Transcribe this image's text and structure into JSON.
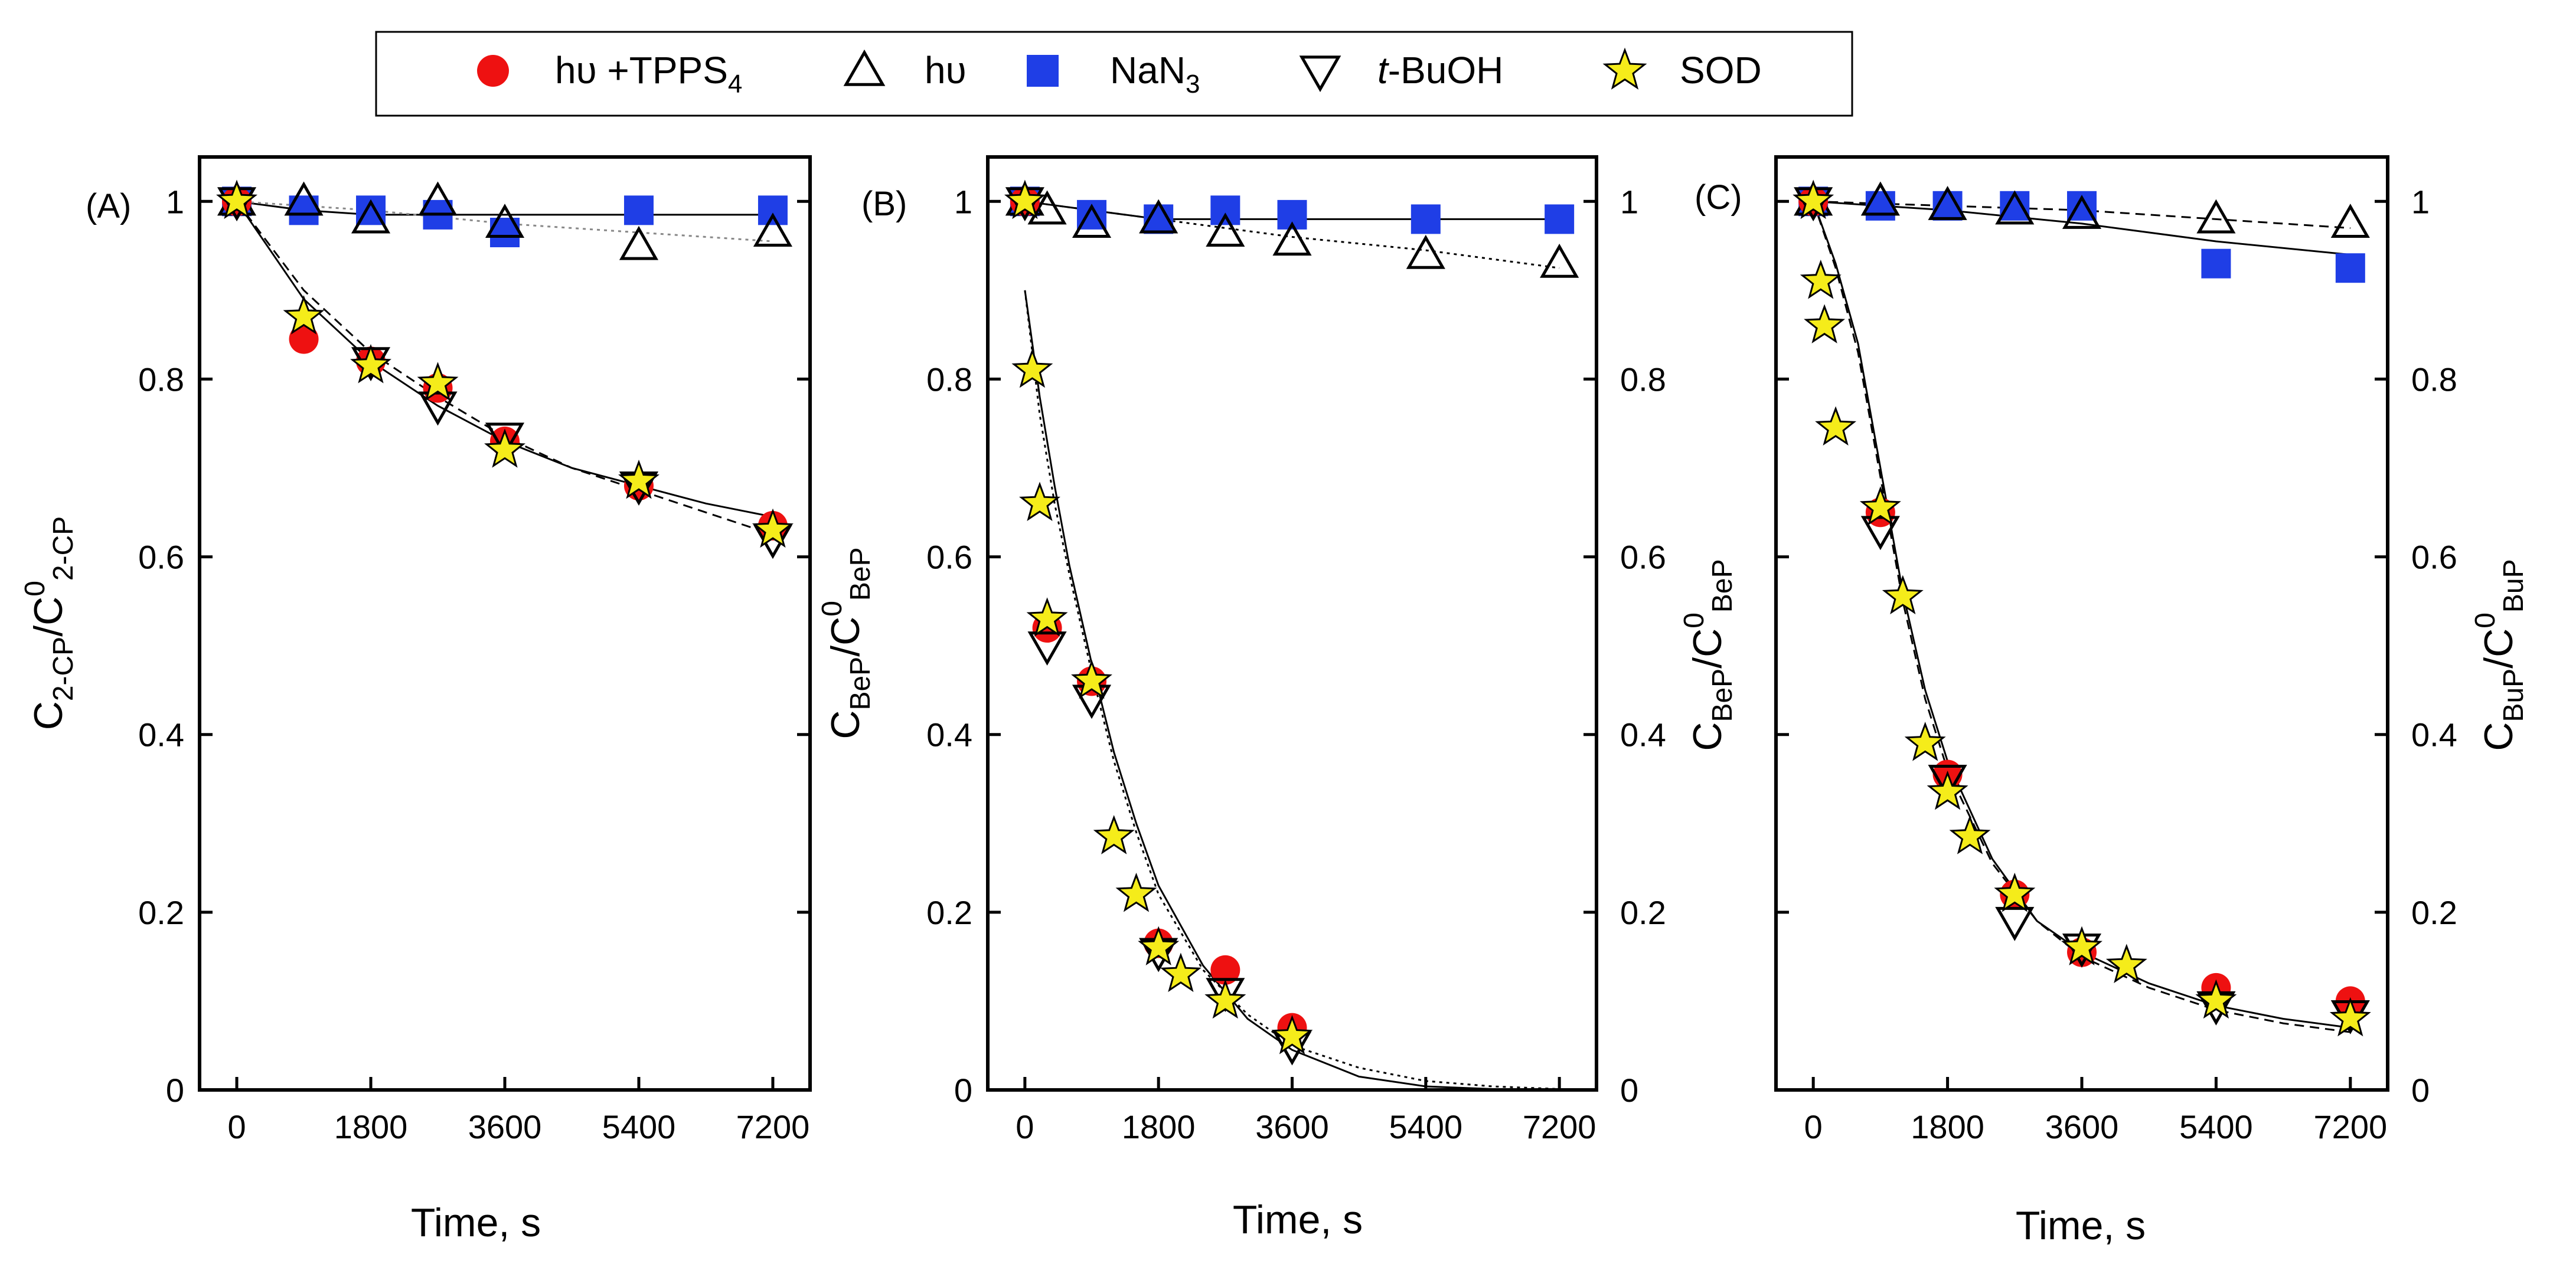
{
  "chart_data": {
    "type": "scatter",
    "legend": [
      {
        "key": "tpps",
        "label": "hυ +TPPS",
        "sub": "4",
        "marker": "circle",
        "color": "#ee1111"
      },
      {
        "key": "hv",
        "label": "hυ",
        "marker": "triangle-up-open",
        "color": "#000000"
      },
      {
        "key": "nan3",
        "label": "NaN",
        "sub": "3",
        "marker": "square",
        "color": "#1f3ee6"
      },
      {
        "key": "tbuoh",
        "label": "-BuOH",
        "prefix_italic": "t",
        "marker": "triangle-down-open",
        "color": "#000000"
      },
      {
        "key": "sod",
        "label": "SOD",
        "marker": "star",
        "color": "#f5ec1a"
      }
    ],
    "xlabel": "Time, s",
    "xticks": [
      "0",
      "1800",
      "3600",
      "5400",
      "7200"
    ],
    "xlim": [
      -500,
      7700
    ],
    "ylim": [
      0,
      1.05
    ],
    "panels": [
      {
        "tag": "(A)",
        "ylabel": {
          "main": "C",
          "sub": "2-CP",
          "sep": "/C",
          "sup": "0",
          "sub2": "2-CP"
        },
        "yticks_left": [
          "0",
          "0.2",
          "0.4",
          "0.6",
          "0.8",
          "1"
        ],
        "yticks_right": [],
        "series": {
          "tpps": [
            [
              0,
              1.0
            ],
            [
              900,
              0.845
            ],
            [
              1800,
              0.82
            ],
            [
              2700,
              0.79
            ],
            [
              3600,
              0.73
            ],
            [
              5400,
              0.68
            ],
            [
              7200,
              0.635
            ]
          ],
          "hv": [
            [
              0,
              1.0
            ],
            [
              900,
              1.0
            ],
            [
              1800,
              0.98
            ],
            [
              2700,
              1.0
            ],
            [
              3600,
              0.975
            ],
            [
              5400,
              0.95
            ],
            [
              7200,
              0.965
            ]
          ],
          "nan3": [
            [
              0,
              1.0
            ],
            [
              900,
              0.99
            ],
            [
              1800,
              0.99
            ],
            [
              2700,
              0.985
            ],
            [
              3600,
              0.965
            ],
            [
              5400,
              0.99
            ],
            [
              7200,
              0.99
            ]
          ],
          "tbuoh": [
            [
              0,
              1.0
            ],
            [
              1800,
              0.82
            ],
            [
              2700,
              0.77
            ],
            [
              3600,
              0.735
            ],
            [
              5400,
              0.68
            ],
            [
              7200,
              0.62
            ]
          ],
          "sod": [
            [
              0,
              1.0
            ],
            [
              900,
              0.87
            ],
            [
              1800,
              0.815
            ],
            [
              2700,
              0.795
            ],
            [
              3600,
              0.72
            ],
            [
              5400,
              0.685
            ],
            [
              7200,
              0.63
            ]
          ]
        },
        "fits": [
          {
            "style": "solid",
            "points": [
              [
                0,
                1.0
              ],
              [
                900,
                0.89
              ],
              [
                1800,
                0.82
              ],
              [
                2700,
                0.77
              ],
              [
                3600,
                0.73
              ],
              [
                4500,
                0.7
              ],
              [
                5400,
                0.68
              ],
              [
                6300,
                0.66
              ],
              [
                7200,
                0.645
              ]
            ]
          },
          {
            "style": "dashed",
            "points": [
              [
                0,
                1.0
              ],
              [
                900,
                0.9
              ],
              [
                1800,
                0.83
              ],
              [
                2700,
                0.78
              ],
              [
                3600,
                0.735
              ],
              [
                4500,
                0.7
              ],
              [
                5400,
                0.675
              ],
              [
                6300,
                0.65
              ],
              [
                7200,
                0.625
              ]
            ]
          },
          {
            "style": "solid",
            "points": [
              [
                0,
                1.0
              ],
              [
                900,
                0.99
              ],
              [
                1800,
                0.985
              ],
              [
                3600,
                0.985
              ],
              [
                5400,
                0.985
              ],
              [
                7200,
                0.985
              ]
            ]
          },
          {
            "style": "dotted-gray",
            "points": [
              [
                0,
                1.0
              ],
              [
                1800,
                0.99
              ],
              [
                3600,
                0.975
              ],
              [
                5400,
                0.965
              ],
              [
                7200,
                0.955
              ]
            ]
          }
        ]
      },
      {
        "tag": "(B)",
        "ylabel": {
          "main": "C",
          "sub": "BeP",
          "sep": "/C",
          "sup": "0",
          "sub2": "BeP"
        },
        "ylabel_right": {
          "main": "C",
          "sub": "BeP",
          "sep": "/C",
          "sup": "0",
          "sub2": "BeP"
        },
        "yticks_left": [
          "0",
          "0.2",
          "0.4",
          "0.6",
          "0.8",
          "1"
        ],
        "yticks_right": [
          "0",
          "0.2",
          "0.4",
          "0.6",
          "0.8",
          "1"
        ],
        "series": {
          "tpps": [
            [
              0,
              1.0
            ],
            [
              300,
              0.52
            ],
            [
              900,
              0.46
            ],
            [
              1800,
              0.165
            ],
            [
              2700,
              0.135
            ],
            [
              3600,
              0.07
            ]
          ],
          "hv": [
            [
              0,
              1.0
            ],
            [
              300,
              0.99
            ],
            [
              900,
              0.975
            ],
            [
              1800,
              0.98
            ],
            [
              2700,
              0.965
            ],
            [
              3600,
              0.955
            ],
            [
              5400,
              0.94
            ],
            [
              7200,
              0.93
            ]
          ],
          "nan3": [
            [
              0,
              1.0
            ],
            [
              900,
              0.985
            ],
            [
              1800,
              0.98
            ],
            [
              2700,
              0.99
            ],
            [
              3600,
              0.985
            ],
            [
              5400,
              0.98
            ],
            [
              7200,
              0.98
            ]
          ],
          "tbuoh": [
            [
              0,
              1.0
            ],
            [
              300,
              0.5
            ],
            [
              900,
              0.44
            ],
            [
              1800,
              0.155
            ],
            [
              2700,
              0.11
            ],
            [
              3600,
              0.05
            ]
          ],
          "sod": [
            [
              0,
              1.0
            ],
            [
              100,
              0.81
            ],
            [
              200,
              0.66
            ],
            [
              300,
              0.53
            ],
            [
              900,
              0.46
            ],
            [
              1200,
              0.285
            ],
            [
              1500,
              0.22
            ],
            [
              1800,
              0.16
            ],
            [
              2100,
              0.13
            ],
            [
              2700,
              0.1
            ],
            [
              3600,
              0.06
            ]
          ]
        },
        "fits": [
          {
            "style": "solid",
            "points": [
              [
                0,
                0.9
              ],
              [
                200,
                0.78
              ],
              [
                400,
                0.68
              ],
              [
                600,
                0.59
              ],
              [
                900,
                0.48
              ],
              [
                1200,
                0.38
              ],
              [
                1500,
                0.3
              ],
              [
                1800,
                0.23
              ],
              [
                2400,
                0.14
              ],
              [
                3000,
                0.08
              ],
              [
                3600,
                0.045
              ],
              [
                4500,
                0.015
              ],
              [
                5400,
                0.004
              ],
              [
                6300,
                0.001
              ],
              [
                7200,
                0.0
              ]
            ]
          },
          {
            "style": "dotted",
            "points": [
              [
                0,
                0.9
              ],
              [
                200,
                0.76
              ],
              [
                400,
                0.66
              ],
              [
                600,
                0.58
              ],
              [
                900,
                0.47
              ],
              [
                1200,
                0.37
              ],
              [
                1500,
                0.29
              ],
              [
                1800,
                0.22
              ],
              [
                2400,
                0.135
              ],
              [
                3000,
                0.085
              ],
              [
                3600,
                0.05
              ],
              [
                4500,
                0.025
              ],
              [
                5400,
                0.01
              ],
              [
                6300,
                0.004
              ],
              [
                7200,
                0.001
              ]
            ]
          },
          {
            "style": "solid",
            "points": [
              [
                0,
                1.0
              ],
              [
                1800,
                0.98
              ],
              [
                3600,
                0.98
              ],
              [
                5400,
                0.98
              ],
              [
                7200,
                0.98
              ]
            ]
          },
          {
            "style": "dotted",
            "points": [
              [
                0,
                1.0
              ],
              [
                1800,
                0.98
              ],
              [
                3600,
                0.96
              ],
              [
                5400,
                0.945
              ],
              [
                7200,
                0.925
              ]
            ]
          }
        ]
      },
      {
        "tag": "(C)",
        "ylabel_right": {
          "main": "C",
          "sub": "BuP",
          "sep": "/C",
          "sup": "0",
          "sub2": "BuP"
        },
        "yticks_left": [],
        "yticks_right": [
          "0",
          "0.2",
          "0.4",
          "0.6",
          "0.8",
          "1"
        ],
        "series": {
          "tpps": [
            [
              0,
              1.0
            ],
            [
              900,
              0.65
            ],
            [
              1800,
              0.355
            ],
            [
              2700,
              0.22
            ],
            [
              3600,
              0.155
            ],
            [
              5400,
              0.115
            ],
            [
              7200,
              0.1
            ]
          ],
          "hv": [
            [
              0,
              1.0
            ],
            [
              900,
              1.0
            ],
            [
              1800,
              0.995
            ],
            [
              2700,
              0.99
            ],
            [
              3600,
              0.985
            ],
            [
              5400,
              0.98
            ],
            [
              7200,
              0.975
            ]
          ],
          "nan3": [
            [
              0,
              1.0
            ],
            [
              900,
              0.995
            ],
            [
              1800,
              0.995
            ],
            [
              2700,
              0.995
            ],
            [
              3600,
              0.995
            ],
            [
              5400,
              0.93
            ],
            [
              7200,
              0.925
            ]
          ],
          "tbuoh": [
            [
              0,
              1.0
            ],
            [
              900,
              0.63
            ],
            [
              1800,
              0.35
            ],
            [
              2700,
              0.19
            ],
            [
              3600,
              0.16
            ],
            [
              5400,
              0.095
            ],
            [
              7200,
              0.085
            ]
          ],
          "sod": [
            [
              0,
              1.0
            ],
            [
              100,
              0.91
            ],
            [
              150,
              0.86
            ],
            [
              300,
              0.745
            ],
            [
              900,
              0.655
            ],
            [
              1200,
              0.555
            ],
            [
              1500,
              0.39
            ],
            [
              1800,
              0.335
            ],
            [
              2100,
              0.285
            ],
            [
              2700,
              0.22
            ],
            [
              3600,
              0.16
            ],
            [
              4200,
              0.14
            ],
            [
              5400,
              0.1
            ],
            [
              7200,
              0.08
            ]
          ]
        },
        "fits": [
          {
            "style": "solid",
            "points": [
              [
                0,
                1.0
              ],
              [
                300,
                0.93
              ],
              [
                600,
                0.84
              ],
              [
                900,
                0.7
              ],
              [
                1200,
                0.56
              ],
              [
                1500,
                0.45
              ],
              [
                1800,
                0.37
              ],
              [
                2400,
                0.26
              ],
              [
                3000,
                0.19
              ],
              [
                3600,
                0.155
              ],
              [
                4500,
                0.12
              ],
              [
                5400,
                0.095
              ],
              [
                6300,
                0.08
              ],
              [
                7200,
                0.07
              ]
            ]
          },
          {
            "style": "dashed",
            "points": [
              [
                0,
                1.0
              ],
              [
                300,
                0.925
              ],
              [
                600,
                0.83
              ],
              [
                900,
                0.69
              ],
              [
                1200,
                0.55
              ],
              [
                1500,
                0.44
              ],
              [
                1800,
                0.36
              ],
              [
                2400,
                0.255
              ],
              [
                3000,
                0.19
              ],
              [
                3600,
                0.15
              ],
              [
                4500,
                0.115
              ],
              [
                5400,
                0.09
              ],
              [
                6300,
                0.075
              ],
              [
                7200,
                0.065
              ]
            ]
          },
          {
            "style": "solid",
            "points": [
              [
                0,
                1.0
              ],
              [
                1800,
                0.99
              ],
              [
                3600,
                0.975
              ],
              [
                5400,
                0.955
              ],
              [
                7200,
                0.94
              ]
            ]
          },
          {
            "style": "dashed",
            "points": [
              [
                0,
                1.0
              ],
              [
                1800,
                0.995
              ],
              [
                3600,
                0.99
              ],
              [
                5400,
                0.98
              ],
              [
                7200,
                0.97
              ]
            ]
          }
        ]
      }
    ]
  }
}
